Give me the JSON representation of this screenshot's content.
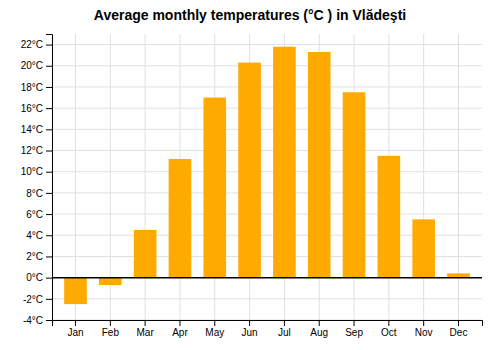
{
  "chart_data": {
    "type": "bar",
    "title": "Average monthly temperatures (°C ) in Vlădeşti",
    "categories": [
      "Jan",
      "Feb",
      "Mar",
      "Apr",
      "May",
      "Jun",
      "Jul",
      "Aug",
      "Sep",
      "Oct",
      "Nov",
      "Dec"
    ],
    "values": [
      -2.5,
      -0.7,
      4.5,
      11.2,
      17.0,
      20.3,
      21.8,
      21.3,
      17.5,
      11.5,
      5.5,
      0.4
    ],
    "color": "#FFAA00",
    "ylim": [
      -4,
      23
    ],
    "yticks": [
      {
        "value": -4,
        "label": "-4°C"
      },
      {
        "value": -2,
        "label": "-2°C"
      },
      {
        "value": 0,
        "label": "0°C"
      },
      {
        "value": 2,
        "label": "2°C"
      },
      {
        "value": 4,
        "label": "4°C"
      },
      {
        "value": 6,
        "label": "6°C"
      },
      {
        "value": 8,
        "label": "8°C"
      },
      {
        "value": 10,
        "label": "10°C"
      },
      {
        "value": 12,
        "label": "12°C"
      },
      {
        "value": 14,
        "label": "14°C"
      },
      {
        "value": 16,
        "label": "16°C"
      },
      {
        "value": 18,
        "label": "18°C"
      },
      {
        "value": 20,
        "label": "20°C"
      },
      {
        "value": 22,
        "label": "22°C"
      }
    ],
    "grid": true
  }
}
